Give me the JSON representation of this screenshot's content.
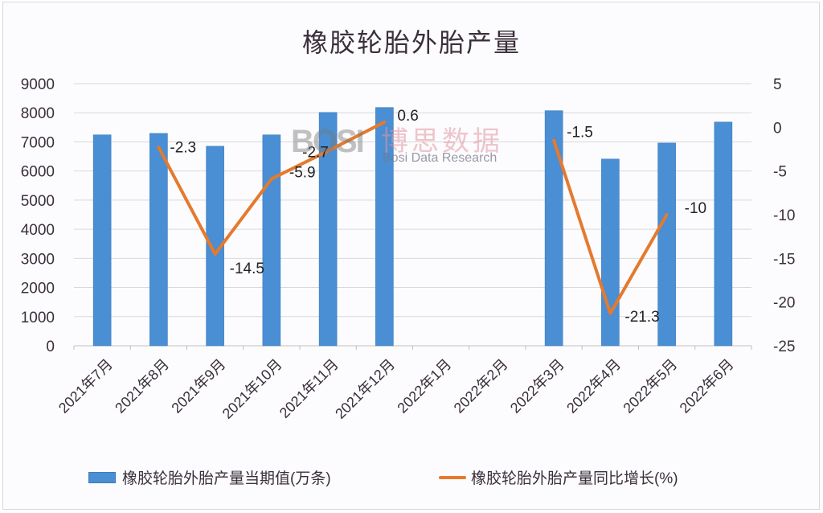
{
  "chart_data": {
    "type": "bar+line",
    "title": "橡胶轮胎外胎产量",
    "categories": [
      "2021年7月",
      "2021年8月",
      "2021年9月",
      "2021年10月",
      "2021年11月",
      "2021年12月",
      "2022年1月",
      "2022年2月",
      "2022年3月",
      "2022年4月",
      "2022年5月",
      "2022年6月"
    ],
    "series": [
      {
        "name": "橡胶轮胎外胎产量当期值(万条)",
        "type": "bar",
        "axis": "left",
        "color": "#4a8ed3",
        "values": [
          7240,
          7290,
          6850,
          7240,
          8010,
          8180,
          null,
          null,
          8070,
          6410,
          6960,
          7680
        ]
      },
      {
        "name": "橡胶轮胎外胎产量同比增长(%)",
        "type": "line",
        "axis": "right",
        "color": "#e47a2e",
        "values": [
          null,
          -2.3,
          -14.5,
          -5.9,
          -2.7,
          0.6,
          null,
          null,
          -1.5,
          -21.3,
          -10,
          null
        ],
        "data_labels": [
          "",
          "-2.3",
          "-14.5",
          "-5.9",
          "-2.7",
          "0.6",
          "",
          "",
          "-1.5",
          "-21.3",
          "-10",
          ""
        ]
      }
    ],
    "y_left": {
      "min": 0,
      "max": 9000,
      "step": 1000,
      "ticks": [
        "0",
        "1000",
        "2000",
        "3000",
        "4000",
        "5000",
        "6000",
        "7000",
        "8000",
        "9000"
      ]
    },
    "y_right": {
      "min": -25,
      "max": 5,
      "step": 5,
      "ticks": [
        "5",
        "0",
        "-5",
        "-10",
        "-15",
        "-20",
        "-25"
      ]
    },
    "xlabel": "",
    "ylabel": "",
    "grid": true,
    "legend_position": "bottom"
  },
  "legend": {
    "bar_label": "橡胶轮胎外胎产量当期值(万条)",
    "line_label": "橡胶轮胎外胎产量同比增长(%)"
  },
  "watermark": {
    "logo": "BOSI",
    "cn": "博思数据",
    "en": "Bosi Data Research"
  }
}
